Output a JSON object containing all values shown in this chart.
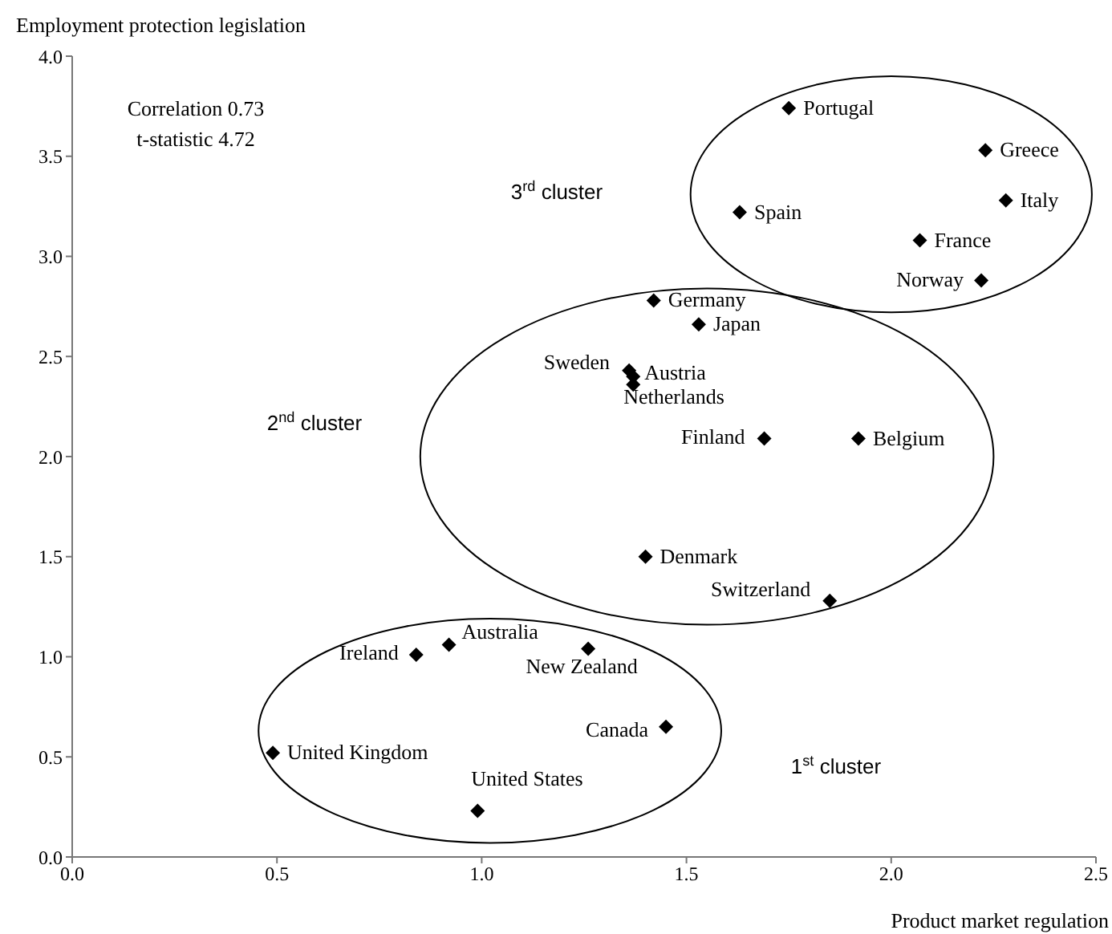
{
  "chart_data": {
    "type": "scatter",
    "xlabel": "Product market regulation",
    "ylabel": "Employment protection legislation",
    "xlim": [
      0,
      2.5
    ],
    "xticks": [
      {
        "value": 0,
        "label": "0.0"
      },
      {
        "value": 0.5,
        "label": "0.5"
      },
      {
        "value": 1,
        "label": "1.0"
      },
      {
        "value": 1.5,
        "label": "1.5"
      },
      {
        "value": 2,
        "label": "2.0"
      },
      {
        "value": 2.5,
        "label": "2.5"
      }
    ],
    "ylim": [
      0,
      4
    ],
    "yticks": [
      {
        "value": 0,
        "label": "0.0"
      },
      {
        "value": 0.5,
        "label": "0.5"
      },
      {
        "value": 1,
        "label": "1.0"
      },
      {
        "value": 1.5,
        "label": "1.5"
      },
      {
        "value": 2,
        "label": "2.0"
      },
      {
        "value": 2.5,
        "label": "2.5"
      },
      {
        "value": 3,
        "label": "3.0"
      },
      {
        "value": 3.5,
        "label": "3.5"
      },
      {
        "value": 4,
        "label": "4.0"
      }
    ],
    "grid": false,
    "legend": false,
    "marker": "diamond",
    "series": [
      {
        "color": "#000000",
        "x": [
          1.75,
          2.23,
          2.28,
          1.63,
          2.07,
          2.22,
          1.42,
          1.53,
          1.36,
          1.37,
          1.37,
          1.69,
          1.92,
          1.4,
          1.85,
          0.92,
          0.84,
          1.26,
          1.45,
          0.49,
          0.99
        ],
        "values": [
          3.74,
          3.53,
          3.28,
          3.22,
          3.08,
          2.88,
          2.78,
          2.66,
          2.43,
          2.4,
          2.36,
          2.09,
          2.09,
          1.5,
          1.28,
          1.06,
          1.01,
          1.04,
          0.65,
          0.52,
          0.23
        ]
      }
    ],
    "annotations": [
      "Correlation 0.73",
      "t-statistic 4.72",
      "3$^{rd}$ cluster",
      "2$^{nd}$ cluster",
      "1$^{st}$ cluster",
      {
        "text": "Portugal",
        "x": 1.75,
        "y": 3.74
      },
      {
        "text": "Greece",
        "x": 2.23,
        "y": 3.53
      },
      {
        "text": "Italy",
        "x": 2.28,
        "y": 3.28
      },
      {
        "text": "Spain",
        "x": 1.63,
        "y": 3.22
      },
      {
        "text": "France",
        "x": 2.07,
        "y": 3.08
      },
      {
        "text": "Norway",
        "x": 2.22,
        "y": 2.88
      },
      {
        "text": "Germany",
        "x": 1.42,
        "y": 2.78
      },
      {
        "text": "Japan",
        "x": 1.53,
        "y": 2.66
      },
      {
        "text": "Sweden",
        "x": 1.36,
        "y": 2.43
      },
      {
        "text": "Austria",
        "x": 1.37,
        "y": 2.4
      },
      {
        "text": "Netherlands",
        "x": 1.37,
        "y": 2.36
      },
      {
        "text": "Finland",
        "x": 1.69,
        "y": 2.09
      },
      {
        "text": "Belgium",
        "x": 1.92,
        "y": 2.09
      },
      {
        "text": "Denmark",
        "x": 1.4,
        "y": 1.5
      },
      {
        "text": "Switzerland",
        "x": 1.85,
        "y": 1.28
      },
      {
        "text": "Australia",
        "x": 0.92,
        "y": 1.06
      },
      {
        "text": "Ireland",
        "x": 0.84,
        "y": 1.01
      },
      {
        "text": "New Zealand",
        "x": 1.26,
        "y": 1.04
      },
      {
        "text": "Canada",
        "x": 1.45,
        "y": 0.65
      },
      {
        "text": "United Kingdom",
        "x": 0.49,
        "y": 0.52
      },
      {
        "text": "United States",
        "x": 0.99,
        "y": 0.23
      }
    ]
  }
}
